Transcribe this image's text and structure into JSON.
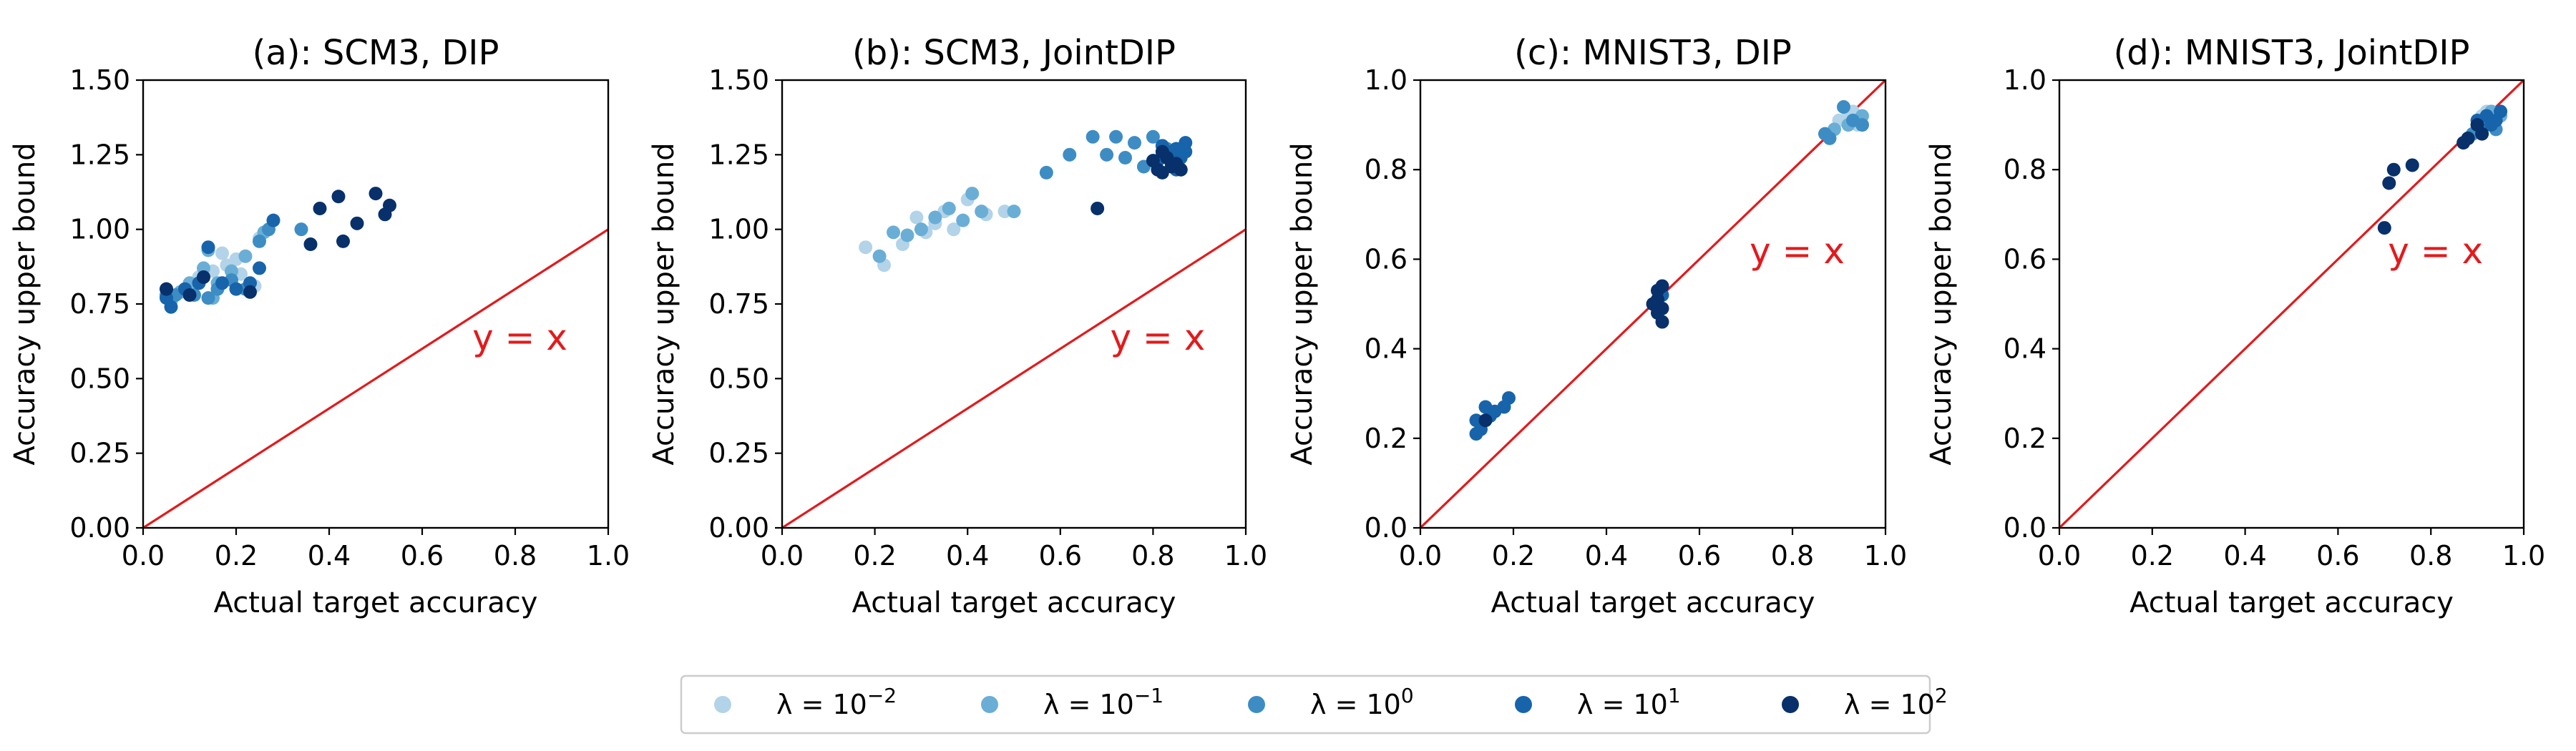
{
  "figure": {
    "legend": {
      "entries": [
        {
          "key": "l-2",
          "label": "λ = 10⁻²",
          "base": "λ = 10",
          "exp": "−2",
          "color": "#b3d3e8"
        },
        {
          "key": "l-1",
          "label": "λ = 10⁻¹",
          "base": "λ = 10",
          "exp": "−1",
          "color": "#6aaed6"
        },
        {
          "key": "l0",
          "label": "λ = 10⁰",
          "base": "λ = 10",
          "exp": "0",
          "color": "#3d8dc4"
        },
        {
          "key": "l1",
          "label": "λ = 10¹",
          "base": "λ = 10",
          "exp": "1",
          "color": "#1764ab"
        },
        {
          "key": "l2",
          "label": "λ = 10²",
          "base": "λ = 10",
          "exp": "2",
          "color": "#08306b"
        }
      ]
    },
    "line_color": "#e31a1c"
  },
  "chart_data": [
    {
      "type": "scatter",
      "title": "(a): SCM3, DIP",
      "xlabel": "Actual target accuracy",
      "ylabel": "Accuracy upper bound",
      "xlim": [
        0.0,
        1.0
      ],
      "ylim": [
        0.0,
        1.5
      ],
      "xticks": [
        "0.0",
        "0.2",
        "0.4",
        "0.6",
        "0.8",
        "1.0"
      ],
      "yticks": [
        "0.00",
        "0.25",
        "0.50",
        "0.75",
        "1.00",
        "1.25",
        "1.50"
      ],
      "reference_line": {
        "label": "y = x",
        "label_at": [
          0.81,
          0.64
        ]
      },
      "series": [
        {
          "name": "λ = 10⁻²",
          "points": [
            [
              0.05,
              0.8
            ],
            [
              0.09,
              0.8
            ],
            [
              0.12,
              0.84
            ],
            [
              0.15,
              0.86
            ],
            [
              0.17,
              0.92
            ],
            [
              0.18,
              0.88
            ],
            [
              0.2,
              0.9
            ],
            [
              0.21,
              0.85
            ],
            [
              0.24,
              0.81
            ],
            [
              0.25,
              0.97
            ]
          ]
        },
        {
          "name": "λ = 10⁻¹",
          "points": [
            [
              0.06,
              0.76
            ],
            [
              0.08,
              0.79
            ],
            [
              0.1,
              0.82
            ],
            [
              0.13,
              0.87
            ],
            [
              0.14,
              0.93
            ],
            [
              0.16,
              0.82
            ],
            [
              0.19,
              0.86
            ],
            [
              0.22,
              0.91
            ],
            [
              0.26,
              0.99
            ],
            [
              0.15,
              0.77
            ]
          ]
        },
        {
          "name": "λ = 10⁰",
          "points": [
            [
              0.05,
              0.78
            ],
            [
              0.07,
              0.78
            ],
            [
              0.11,
              0.78
            ],
            [
              0.14,
              0.77
            ],
            [
              0.16,
              0.8
            ],
            [
              0.19,
              0.83
            ],
            [
              0.22,
              0.8
            ],
            [
              0.25,
              0.96
            ],
            [
              0.27,
              1.0
            ],
            [
              0.34,
              1.0
            ]
          ]
        },
        {
          "name": "λ = 10¹",
          "points": [
            [
              0.05,
              0.77
            ],
            [
              0.06,
              0.74
            ],
            [
              0.09,
              0.8
            ],
            [
              0.12,
              0.82
            ],
            [
              0.14,
              0.94
            ],
            [
              0.17,
              0.82
            ],
            [
              0.2,
              0.8
            ],
            [
              0.25,
              0.87
            ],
            [
              0.28,
              1.03
            ],
            [
              0.23,
              0.82
            ]
          ]
        },
        {
          "name": "λ = 10²",
          "points": [
            [
              0.05,
              0.8
            ],
            [
              0.1,
              0.78
            ],
            [
              0.13,
              0.84
            ],
            [
              0.23,
              0.79
            ],
            [
              0.36,
              0.95
            ],
            [
              0.38,
              1.07
            ],
            [
              0.42,
              1.11
            ],
            [
              0.43,
              0.96
            ],
            [
              0.46,
              1.02
            ],
            [
              0.5,
              1.12
            ],
            [
              0.52,
              1.05
            ],
            [
              0.53,
              1.08
            ]
          ]
        }
      ]
    },
    {
      "type": "scatter",
      "title": "(b): SCM3, JointDIP",
      "xlabel": "Actual target accuracy",
      "ylabel": "Accuracy upper bound",
      "xlim": [
        0.0,
        1.0
      ],
      "ylim": [
        0.0,
        1.5
      ],
      "xticks": [
        "0.0",
        "0.2",
        "0.4",
        "0.6",
        "0.8",
        "1.0"
      ],
      "yticks": [
        "0.00",
        "0.25",
        "0.50",
        "0.75",
        "1.00",
        "1.25",
        "1.50"
      ],
      "reference_line": {
        "label": "y = x",
        "label_at": [
          0.81,
          0.64
        ]
      },
      "series": [
        {
          "name": "λ = 10⁻²",
          "points": [
            [
              0.18,
              0.94
            ],
            [
              0.22,
              0.88
            ],
            [
              0.26,
              0.95
            ],
            [
              0.29,
              1.04
            ],
            [
              0.31,
              0.99
            ],
            [
              0.33,
              1.02
            ],
            [
              0.37,
              1.0
            ],
            [
              0.4,
              1.1
            ],
            [
              0.48,
              1.06
            ],
            [
              0.44,
              1.05
            ],
            [
              0.35,
              1.06
            ]
          ]
        },
        {
          "name": "λ = 10⁻¹",
          "points": [
            [
              0.21,
              0.91
            ],
            [
              0.24,
              0.99
            ],
            [
              0.27,
              0.98
            ],
            [
              0.3,
              1.0
            ],
            [
              0.33,
              1.04
            ],
            [
              0.36,
              1.07
            ],
            [
              0.39,
              1.03
            ],
            [
              0.41,
              1.12
            ],
            [
              0.43,
              1.06
            ],
            [
              0.5,
              1.06
            ]
          ]
        },
        {
          "name": "λ = 10⁰",
          "points": [
            [
              0.57,
              1.19
            ],
            [
              0.62,
              1.25
            ],
            [
              0.67,
              1.31
            ],
            [
              0.7,
              1.25
            ],
            [
              0.72,
              1.31
            ],
            [
              0.74,
              1.24
            ],
            [
              0.76,
              1.29
            ],
            [
              0.78,
              1.21
            ],
            [
              0.8,
              1.31
            ],
            [
              0.83,
              1.27
            ]
          ]
        },
        {
          "name": "λ = 10¹",
          "points": [
            [
              0.81,
              1.23
            ],
            [
              0.82,
              1.28
            ],
            [
              0.83,
              1.25
            ],
            [
              0.84,
              1.22
            ],
            [
              0.85,
              1.27
            ],
            [
              0.86,
              1.24
            ],
            [
              0.87,
              1.29
            ],
            [
              0.87,
              1.26
            ],
            [
              0.85,
              1.2
            ],
            [
              0.84,
              1.26
            ]
          ]
        },
        {
          "name": "λ = 10²",
          "points": [
            [
              0.68,
              1.07
            ],
            [
              0.8,
              1.23
            ],
            [
              0.81,
              1.2
            ],
            [
              0.82,
              1.19
            ],
            [
              0.83,
              1.24
            ],
            [
              0.84,
              1.21
            ],
            [
              0.85,
              1.22
            ],
            [
              0.86,
              1.2
            ],
            [
              0.82,
              1.26
            ]
          ]
        }
      ]
    },
    {
      "type": "scatter",
      "title": "(c): MNIST3, DIP",
      "xlabel": "Actual target accuracy",
      "ylabel": "Accuracy upper bound",
      "xlim": [
        0.0,
        1.0
      ],
      "ylim": [
        0.0,
        1.0
      ],
      "xticks": [
        "0.0",
        "0.2",
        "0.4",
        "0.6",
        "0.8",
        "1.0"
      ],
      "yticks": [
        "0.0",
        "0.2",
        "0.4",
        "0.6",
        "0.8",
        "1.0"
      ],
      "reference_line": {
        "label": "y = x",
        "label_at": [
          0.81,
          0.62
        ]
      },
      "series": [
        {
          "name": "λ = 10⁻²",
          "points": [
            [
              0.9,
              0.91
            ],
            [
              0.92,
              0.92
            ],
            [
              0.94,
              0.9
            ],
            [
              0.93,
              0.93
            ]
          ]
        },
        {
          "name": "λ = 10⁻¹",
          "points": [
            [
              0.89,
              0.89
            ],
            [
              0.92,
              0.9
            ],
            [
              0.94,
              0.91
            ],
            [
              0.95,
              0.92
            ]
          ]
        },
        {
          "name": "λ = 10⁰",
          "points": [
            [
              0.87,
              0.88
            ],
            [
              0.91,
              0.94
            ],
            [
              0.93,
              0.91
            ],
            [
              0.95,
              0.9
            ],
            [
              0.88,
              0.87
            ]
          ]
        },
        {
          "name": "λ = 10¹",
          "points": [
            [
              0.12,
              0.24
            ],
            [
              0.13,
              0.22
            ],
            [
              0.14,
              0.27
            ],
            [
              0.15,
              0.25
            ],
            [
              0.16,
              0.26
            ],
            [
              0.18,
              0.27
            ],
            [
              0.19,
              0.29
            ],
            [
              0.12,
              0.21
            ],
            [
              0.51,
              0.49
            ],
            [
              0.51,
              0.5
            ],
            [
              0.52,
              0.52
            ]
          ]
        },
        {
          "name": "λ = 10²",
          "points": [
            [
              0.51,
              0.48
            ],
            [
              0.51,
              0.51
            ],
            [
              0.52,
              0.46
            ],
            [
              0.52,
              0.54
            ],
            [
              0.51,
              0.53
            ],
            [
              0.52,
              0.49
            ],
            [
              0.5,
              0.5
            ],
            [
              0.14,
              0.24
            ]
          ]
        }
      ]
    },
    {
      "type": "scatter",
      "title": "(d): MNIST3, JointDIP",
      "xlabel": "Actual target accuracy",
      "ylabel": "Accuracy upper bound",
      "xlim": [
        0.0,
        1.0
      ],
      "ylim": [
        0.0,
        1.0
      ],
      "xticks": [
        "0.0",
        "0.2",
        "0.4",
        "0.6",
        "0.8",
        "1.0"
      ],
      "yticks": [
        "0.0",
        "0.2",
        "0.4",
        "0.6",
        "0.8",
        "1.0"
      ],
      "reference_line": {
        "label": "y = x",
        "label_at": [
          0.81,
          0.62
        ]
      },
      "series": [
        {
          "name": "λ = 10⁻²",
          "points": [
            [
              0.91,
              0.92
            ],
            [
              0.92,
              0.93
            ],
            [
              0.93,
              0.91
            ],
            [
              0.94,
              0.92
            ]
          ]
        },
        {
          "name": "λ = 10⁻¹",
          "points": [
            [
              0.9,
              0.9
            ],
            [
              0.92,
              0.91
            ],
            [
              0.93,
              0.93
            ],
            [
              0.95,
              0.92
            ],
            [
              0.91,
              0.89
            ]
          ]
        },
        {
          "name": "λ = 10⁰",
          "points": [
            [
              0.89,
              0.88
            ],
            [
              0.91,
              0.9
            ],
            [
              0.93,
              0.91
            ],
            [
              0.94,
              0.89
            ],
            [
              0.92,
              0.92
            ]
          ]
        },
        {
          "name": "λ = 10¹",
          "points": [
            [
              0.88,
              0.87
            ],
            [
              0.9,
              0.91
            ],
            [
              0.92,
              0.92
            ],
            [
              0.93,
              0.9
            ],
            [
              0.95,
              0.93
            ],
            [
              0.94,
              0.91
            ]
          ]
        },
        {
          "name": "λ = 10²",
          "points": [
            [
              0.7,
              0.67
            ],
            [
              0.71,
              0.77
            ],
            [
              0.72,
              0.8
            ],
            [
              0.76,
              0.81
            ],
            [
              0.87,
              0.86
            ],
            [
              0.88,
              0.87
            ],
            [
              0.9,
              0.9
            ],
            [
              0.91,
              0.88
            ]
          ]
        }
      ]
    }
  ]
}
